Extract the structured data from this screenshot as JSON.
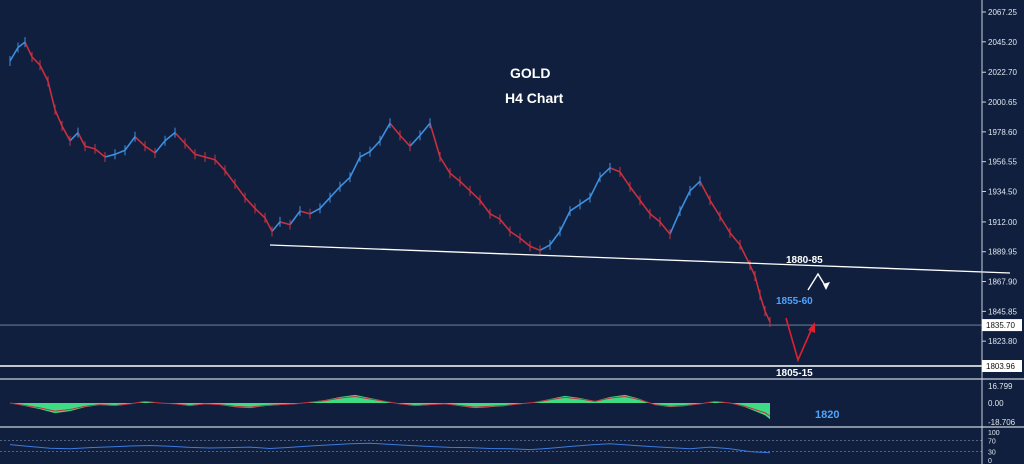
{
  "chart_data": {
    "type": "line",
    "title": "GOLD",
    "subtitle": "H4 Chart",
    "price_axis": {
      "ylim": [
        1803.96,
        2067.25
      ],
      "tick_labels": [
        "2067.25",
        "2045.20",
        "2022.70",
        "2000.65",
        "1978.60",
        "1956.55",
        "1934.50",
        "1912.00",
        "1889.95",
        "1867.90",
        "1845.85",
        "1823.80"
      ]
    },
    "current_price": "1835.70",
    "support_price": "1803.96",
    "series": [
      {
        "x": [
          0,
          8,
          15,
          22,
          30,
          38,
          45,
          52,
          60,
          68,
          75,
          85,
          95,
          105,
          115,
          125,
          135,
          145,
          155,
          165,
          175,
          185,
          195,
          205,
          215,
          225,
          235,
          245,
          255,
          262,
          270,
          280,
          290,
          300,
          310,
          320,
          330,
          340,
          350,
          360,
          370,
          380,
          390,
          400,
          410,
          420,
          430,
          440,
          450,
          460,
          470,
          480,
          490,
          500,
          510,
          520,
          530,
          540,
          550,
          560,
          570,
          580,
          590,
          600,
          610,
          620,
          630,
          640,
          650,
          660,
          670,
          680,
          690,
          700,
          710,
          720,
          730,
          740,
          745,
          750,
          755,
          760
        ],
        "values": [
          2031,
          2041,
          2045,
          2034,
          2028,
          2016,
          1995,
          1983,
          1972,
          1978,
          1968,
          1966,
          1960,
          1962,
          1965,
          1975,
          1968,
          1963,
          1972,
          1978,
          1970,
          1962,
          1960,
          1958,
          1950,
          1940,
          1930,
          1922,
          1915,
          1905,
          1912,
          1910,
          1920,
          1918,
          1922,
          1930,
          1938,
          1945,
          1960,
          1964,
          1972,
          1985,
          1976,
          1968,
          1976,
          1985,
          1960,
          1948,
          1942,
          1935,
          1928,
          1918,
          1914,
          1905,
          1900,
          1894,
          1891,
          1895,
          1905,
          1920,
          1925,
          1930,
          1945,
          1952,
          1949,
          1938,
          1928,
          1918,
          1912,
          1903,
          1920,
          1935,
          1942,
          1928,
          1916,
          1904,
          1895,
          1880,
          1872,
          1858,
          1846,
          1838
        ]
      }
    ],
    "trendline_label": "1880-85",
    "projection_label_high": "1855-60",
    "projection_label_low": "1805-15",
    "indicator1": {
      "type": "area",
      "ylim": [
        -18.706,
        16.799
      ],
      "tick_labels": [
        "16.799",
        "0.00",
        "-18.706"
      ],
      "annotation": "1820",
      "x": [
        0,
        15,
        30,
        45,
        60,
        75,
        90,
        105,
        120,
        135,
        150,
        165,
        180,
        195,
        210,
        225,
        240,
        255,
        270,
        285,
        300,
        315,
        330,
        345,
        360,
        375,
        390,
        405,
        420,
        435,
        450,
        465,
        480,
        495,
        510,
        525,
        540,
        555,
        570,
        585,
        600,
        615,
        630,
        645,
        660,
        675,
        690,
        705,
        720,
        735,
        745,
        755,
        760
      ],
      "values": [
        0,
        -3,
        -6,
        -10,
        -8,
        -4,
        -2,
        -3,
        -1,
        2,
        0,
        -1,
        -3,
        -1,
        -2,
        -4,
        -5,
        -3,
        -2,
        -1,
        1,
        3,
        6,
        8,
        5,
        2,
        -1,
        -3,
        -2,
        -1,
        -3,
        -5,
        -4,
        -3,
        -1,
        1,
        4,
        7,
        5,
        2,
        6,
        8,
        4,
        -2,
        -4,
        -3,
        -1,
        2,
        0,
        -4,
        -8,
        -12,
        -16
      ]
    },
    "indicator2": {
      "type": "line",
      "ylim": [
        0,
        100
      ],
      "tick_labels": [
        "100",
        "70",
        "30",
        "0"
      ],
      "x": [
        0,
        20,
        40,
        60,
        80,
        100,
        120,
        140,
        160,
        180,
        200,
        220,
        240,
        260,
        280,
        300,
        320,
        340,
        360,
        380,
        400,
        420,
        440,
        460,
        480,
        500,
        520,
        540,
        560,
        580,
        600,
        620,
        640,
        660,
        680,
        700,
        720,
        740,
        760
      ],
      "values": [
        55,
        48,
        42,
        40,
        44,
        47,
        50,
        52,
        49,
        45,
        43,
        44,
        46,
        41,
        45,
        50,
        54,
        58,
        60,
        56,
        52,
        48,
        45,
        44,
        41,
        40,
        37,
        42,
        48,
        54,
        58,
        53,
        48,
        44,
        40,
        46,
        40,
        30,
        26
      ]
    }
  }
}
